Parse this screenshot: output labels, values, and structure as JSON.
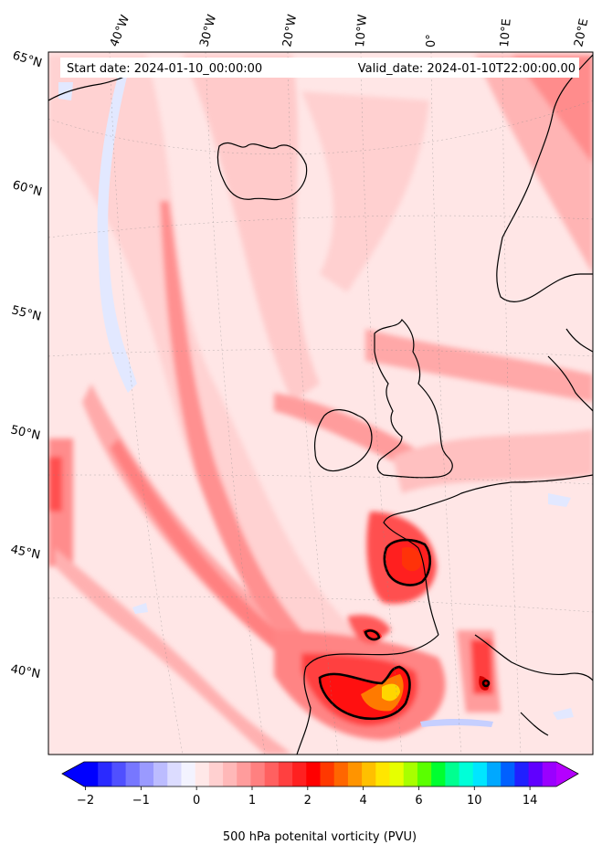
{
  "header": {
    "start_date": "Start date: 2024-01-10_00:00:00",
    "valid_date": "Valid_date: 2024-01-10T22:00:00.00"
  },
  "axes": {
    "lon_labels": [
      "40°W",
      "30°W",
      "20°W",
      "10°W",
      "0°",
      "10°E",
      "20°E"
    ],
    "lat_labels": [
      "65°N",
      "60°N",
      "55°N",
      "50°N",
      "45°N",
      "40°N"
    ]
  },
  "colorbar": {
    "label": "500 hPa potenital vorticity (PVU)",
    "tick_labels": [
      "−2",
      "−1",
      "0",
      "1",
      "2",
      "4",
      "6",
      "10",
      "14"
    ],
    "colors": [
      "#0000ff",
      "#2a2aff",
      "#5050ff",
      "#7777ff",
      "#9a9aff",
      "#bcbcff",
      "#dcdcff",
      "#f3f3ff",
      "#ffe8e8",
      "#ffd0d0",
      "#ffb8b8",
      "#ff9c9c",
      "#ff8080",
      "#ff6060",
      "#ff4040",
      "#ff2020",
      "#ff0000",
      "#ff3800",
      "#ff6600",
      "#ff9400",
      "#ffc000",
      "#ffe600",
      "#e6ff00",
      "#a8ff00",
      "#5aff00",
      "#00ff30",
      "#00ff90",
      "#00ffd8",
      "#00e6ff",
      "#00a8ff",
      "#0060ff",
      "#2020ff",
      "#6000ff",
      "#9a00ff"
    ],
    "extend_min_color": "#0000ff",
    "extend_max_color": "#b400ff"
  },
  "palette": {
    "background_pv": "#ffe4e4",
    "low_pv": "#ffd0d0",
    "mid_pv": "#ff9c9c",
    "high_pv": "#ff4a4a",
    "max_pv": "#ff1010",
    "orange_pv": "#ff7a00",
    "yellow_pv": "#ffd600",
    "negative_pv": "#dde4ff",
    "coast": "#000000"
  }
}
